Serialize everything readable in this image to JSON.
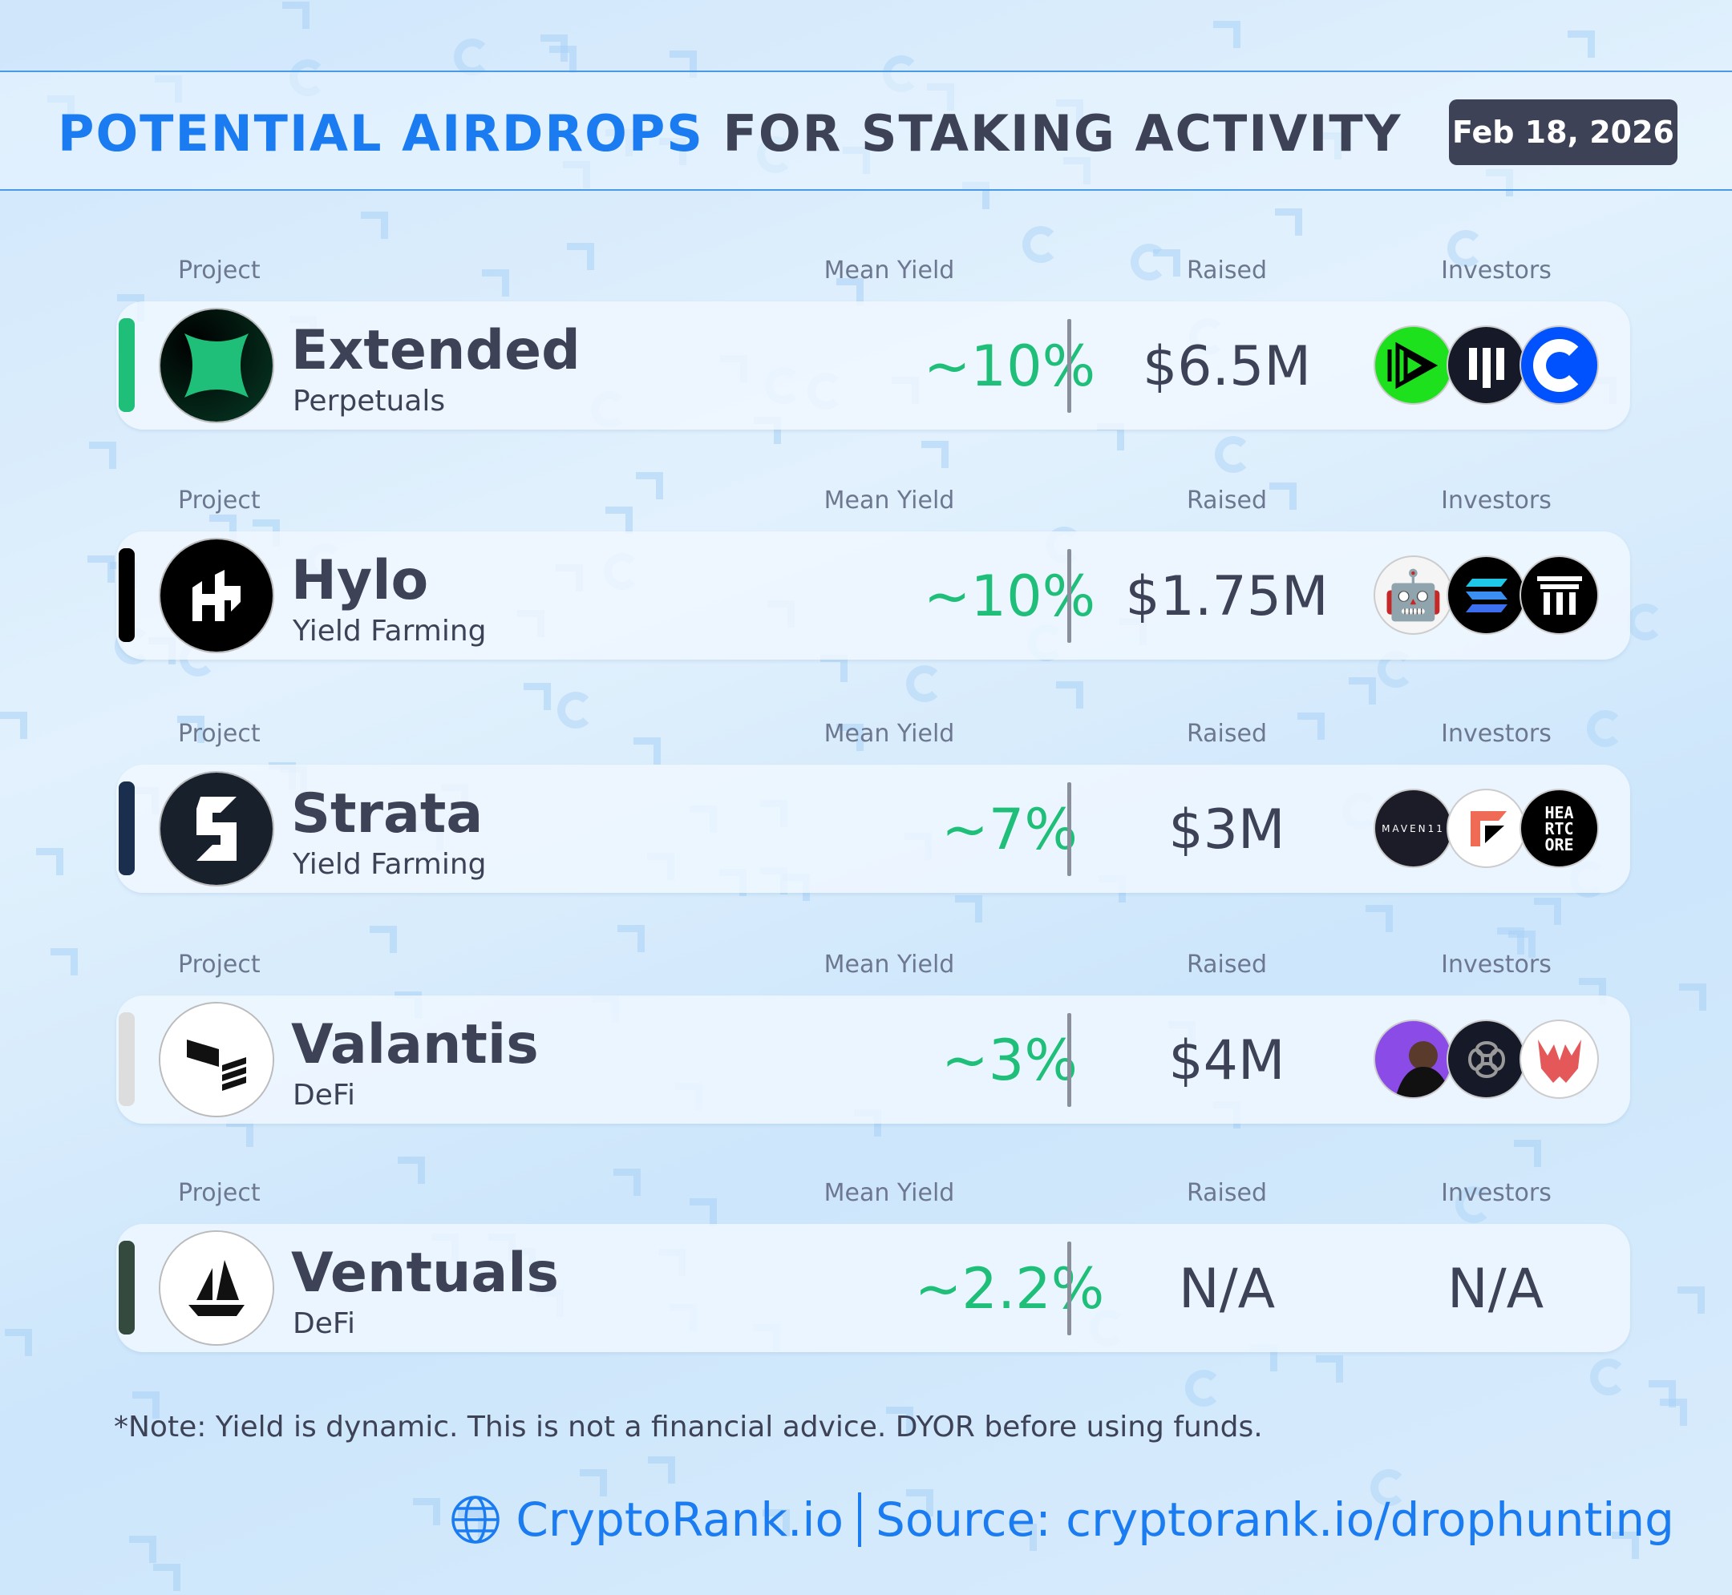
{
  "header": {
    "title_highlight": "POTENTIAL AIRDROPS",
    "title_rest": "FOR STAKING ACTIVITY",
    "date": "Feb 18, 2026"
  },
  "columns": {
    "project": "Project",
    "yield": "Mean Yield",
    "raised": "Raised",
    "investors": "Investors"
  },
  "colors": {
    "accent": "#1a7cf0",
    "yield": "#1fbf7a",
    "text": "#3d4257"
  },
  "rows": [
    {
      "name": "Extended",
      "category": "Perpetuals",
      "yield": "~10%",
      "raised": "$6.5M",
      "bar_color": "#1fbf7a",
      "investors": [
        "green-play-logo",
        "bars-logo",
        "coinbase-logo"
      ]
    },
    {
      "name": "Hylo",
      "category": "Yield Farming",
      "yield": "~10%",
      "raised": "$1.75M",
      "bar_color": "#000000",
      "investors": [
        "robot-logo",
        "solana-logo",
        "pillar-logo"
      ]
    },
    {
      "name": "Strata",
      "category": "Yield Farming",
      "yield": "~7%",
      "raised": "$3M",
      "bar_color": "#1a2f4e",
      "investors": [
        "maven11-logo",
        "flag-logo",
        "heartcore-logo"
      ],
      "investor_texts": [
        "MAVEN11",
        "",
        "HEA RTC ORE"
      ]
    },
    {
      "name": "Valantis",
      "category": "DeFi",
      "yield": "~3%",
      "raised": "$4M",
      "bar_color": "#dddddd",
      "investors": [
        "person-avatar",
        "knot-logo",
        "trident-logo"
      ]
    },
    {
      "name": "Ventuals",
      "category": "DeFi",
      "yield": "~2.2%",
      "raised": "N/A",
      "investors_text": "N/A",
      "bar_color": "#344a3e"
    }
  ],
  "note": "*Note: Yield is dynamic. This is not a financial advice. DYOR before using funds.",
  "footer": {
    "brand": "CryptoRank.io",
    "source": "Source: cryptorank.io/drophunting"
  }
}
